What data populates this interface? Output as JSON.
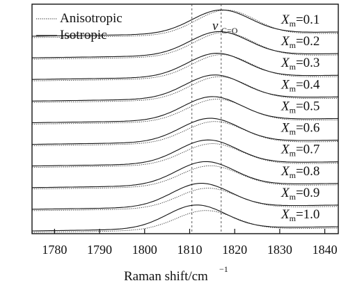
{
  "chart_data": {
    "type": "line",
    "xlabel": "Raman shift/cm",
    "xlabel_sup": "−1",
    "xlim": [
      1775,
      1843
    ],
    "x_ticks": [
      1780,
      1790,
      1800,
      1810,
      1820,
      1830,
      1840
    ],
    "y_ticks": false,
    "grid": false,
    "legend": {
      "placement": "top-left",
      "entries": [
        {
          "label": "Anisotropic",
          "style": "dotted"
        },
        {
          "label": "Isotropic",
          "style": "solid"
        }
      ]
    },
    "annotation": {
      "text_main": "ν",
      "text_sub": "C=O",
      "x": 1817
    },
    "reference_lines_x": [
      1810.5,
      1817
    ],
    "series_prefix": "X",
    "series_sub": "m",
    "series": [
      {
        "name": "Xm=0.1",
        "xm": "0.1",
        "peak_aniso": 1818,
        "peak_iso": 1817,
        "height_aniso": 1.05,
        "height_iso": 1.0
      },
      {
        "name": "Xm=0.2",
        "xm": "0.2",
        "peak_aniso": 1817.5,
        "peak_iso": 1816.5,
        "height_aniso": 1.02,
        "height_iso": 1.0
      },
      {
        "name": "Xm=0.3",
        "xm": "0.3",
        "peak_aniso": 1817,
        "peak_iso": 1816,
        "height_aniso": 1.0,
        "height_iso": 1.0
      },
      {
        "name": "Xm=0.4",
        "xm": "0.4",
        "peak_aniso": 1816.5,
        "peak_iso": 1815.5,
        "height_aniso": 0.98,
        "height_iso": 1.0
      },
      {
        "name": "Xm=0.5",
        "xm": "0.5",
        "peak_aniso": 1816,
        "peak_iso": 1815,
        "height_aniso": 0.95,
        "height_iso": 1.0
      },
      {
        "name": "Xm=0.6",
        "xm": "0.6",
        "peak_aniso": 1815.5,
        "peak_iso": 1814.5,
        "height_aniso": 0.92,
        "height_iso": 1.0
      },
      {
        "name": "Xm=0.7",
        "xm": "0.7",
        "peak_aniso": 1815,
        "peak_iso": 1814,
        "height_aniso": 0.9,
        "height_iso": 1.0
      },
      {
        "name": "Xm=0.8",
        "xm": "0.8",
        "peak_aniso": 1814.5,
        "peak_iso": 1813.5,
        "height_aniso": 0.88,
        "height_iso": 1.0
      },
      {
        "name": "Xm=0.9",
        "xm": "0.9",
        "peak_aniso": 1814,
        "peak_iso": 1812.5,
        "height_aniso": 0.85,
        "height_iso": 1.0
      },
      {
        "name": "Xm=1.0",
        "xm": "1.0",
        "peak_aniso": 1813.5,
        "peak_iso": 1811.5,
        "height_aniso": 0.82,
        "height_iso": 1.0
      }
    ]
  }
}
